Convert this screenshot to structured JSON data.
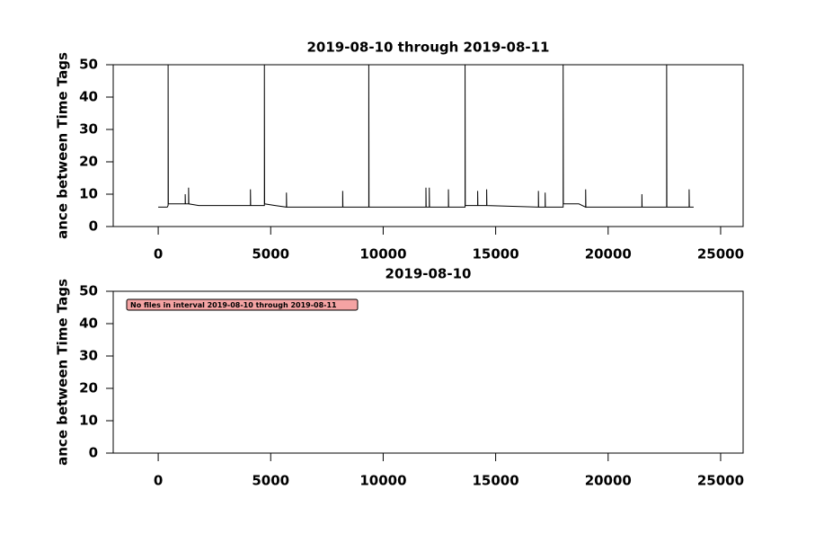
{
  "chart_data": [
    {
      "type": "line",
      "title": "2019-08-10 through 2019-08-11",
      "ylabel": "ance between Time Tags",
      "xlim": [
        -2000,
        26000
      ],
      "xticks": [
        0,
        5000,
        10000,
        15000,
        20000,
        25000
      ],
      "ylim": [
        0,
        50
      ],
      "yticks": [
        0,
        10,
        20,
        30,
        40,
        50
      ],
      "color": "#000000",
      "x": [
        0,
        400,
        440,
        440,
        450,
        1200,
        1200,
        1210,
        1350,
        1350,
        1360,
        1800,
        2600,
        3900,
        4100,
        4100,
        4110,
        4720,
        4720,
        4730,
        5200,
        5700,
        5700,
        5710,
        8200,
        8200,
        8210,
        9360,
        9360,
        9370,
        11900,
        11900,
        11910,
        12050,
        12050,
        12060,
        12900,
        12900,
        12910,
        13640,
        13640,
        13650,
        14200,
        14200,
        14210,
        14600,
        14600,
        14610,
        16900,
        16900,
        16910,
        17200,
        17200,
        17210,
        18000,
        18000,
        18010,
        18700,
        19000,
        19000,
        19010,
        21500,
        21500,
        21510,
        22600,
        22600,
        22610,
        23600,
        23600,
        23610,
        23800
      ],
      "values": [
        6,
        6,
        6.5,
        50,
        7,
        7,
        10,
        7,
        7,
        12,
        7,
        6.5,
        6.5,
        6.5,
        6.5,
        11.5,
        6.5,
        6.5,
        50,
        7,
        6.5,
        6,
        10.5,
        6,
        6,
        11,
        6,
        6,
        50,
        6,
        6,
        12,
        6,
        6,
        12,
        6,
        6,
        11.5,
        6,
        6,
        50,
        6.5,
        6.5,
        11,
        6.5,
        6.5,
        11.5,
        6.5,
        6,
        11,
        6,
        6,
        10.5,
        6,
        6,
        50,
        7,
        7,
        6,
        11.5,
        6,
        6,
        10,
        6,
        6,
        50,
        6,
        6,
        11.5,
        6,
        6
      ]
    },
    {
      "type": "line",
      "title": "2019-08-10",
      "ylabel": "ance between Time Tags",
      "xlim": [
        -2000,
        26000
      ],
      "xticks": [
        0,
        5000,
        10000,
        15000,
        20000,
        25000
      ],
      "ylim": [
        0,
        50
      ],
      "yticks": [
        0,
        10,
        20,
        30,
        40,
        50
      ],
      "color": "#000000",
      "x": [],
      "values": [],
      "annotation": "No files in interval 2019-08-10 through 2019-08-11"
    }
  ]
}
